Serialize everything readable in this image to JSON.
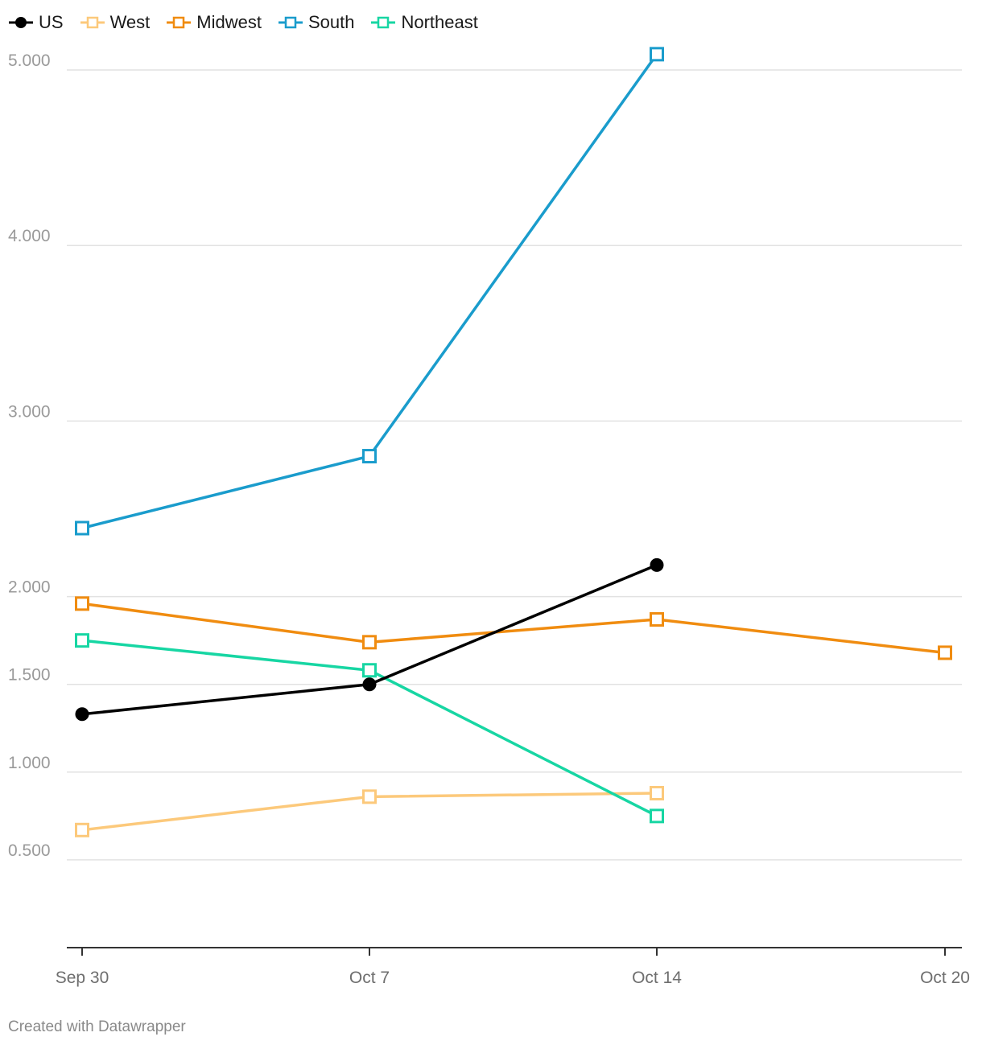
{
  "chart_data": {
    "type": "line",
    "categories": [
      "Sep 30",
      "Oct 7",
      "Oct 14",
      "Oct 20"
    ],
    "yticks": [
      {
        "value": 0.5,
        "label": "0.500"
      },
      {
        "value": 1.0,
        "label": "1.000"
      },
      {
        "value": 1.5,
        "label": "1.500"
      },
      {
        "value": 2.0,
        "label": "2.000"
      },
      {
        "value": 3.0,
        "label": "3.000"
      },
      {
        "value": 4.0,
        "label": "4.000"
      },
      {
        "value": 5.0,
        "label": "5.000"
      }
    ],
    "ylim": [
      0.0,
      5.2
    ],
    "grid": true,
    "legend_position": "top-left",
    "series": [
      {
        "name": "West",
        "color": "#fcc97b",
        "marker": "square",
        "values": [
          0.67,
          0.86,
          0.88,
          null
        ]
      },
      {
        "name": "Midwest",
        "color": "#f08c10",
        "marker": "square",
        "values": [
          1.96,
          1.74,
          1.87,
          1.68
        ]
      },
      {
        "name": "South",
        "color": "#1a9ccc",
        "marker": "square",
        "values": [
          2.39,
          2.8,
          5.09,
          null
        ]
      },
      {
        "name": "Northeast",
        "color": "#17d6a3",
        "marker": "square",
        "values": [
          1.75,
          1.58,
          0.75,
          null
        ]
      },
      {
        "name": "US",
        "color": "#000000",
        "marker": "circle",
        "values": [
          1.33,
          1.5,
          2.18,
          null
        ]
      }
    ],
    "legend_order": [
      "US",
      "West",
      "Midwest",
      "South",
      "Northeast"
    ]
  },
  "footer": {
    "credit": "Created with Datawrapper"
  }
}
